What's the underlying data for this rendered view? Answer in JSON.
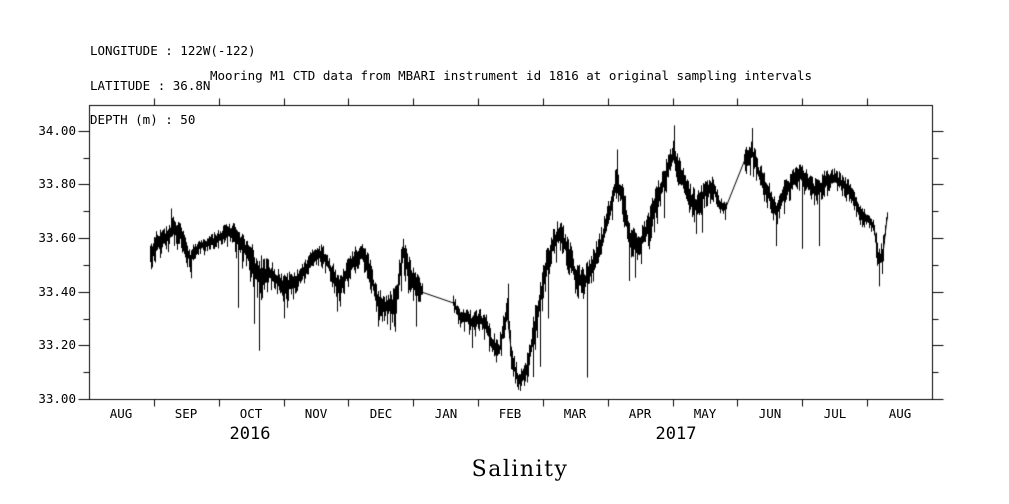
{
  "header": {
    "longitude": "LONGITUDE : 122W(-122)",
    "latitude": "LATITUDE : 36.8N",
    "depth": "DEPTH (m) : 50"
  },
  "title": "Mooring M1 CTD data from MBARI instrument id 1816 at original sampling intervals",
  "axis_title": "Salinity",
  "colors": {
    "ink": "#000000",
    "background": "#ffffff"
  },
  "chart_data": {
    "type": "line",
    "series_name": "salinity",
    "x_unit": "months since 2016-08-01",
    "xlim_months": [
      0,
      13
    ],
    "ylim": [
      33.0,
      34.096
    ],
    "grid": false,
    "legend": "none",
    "x_tick_labels": [
      "AUG",
      "SEP",
      "OCT",
      "NOV",
      "DEC",
      "JAN",
      "FEB",
      "MAR",
      "APR",
      "MAY",
      "JUN",
      "JUL",
      "AUG"
    ],
    "year_labels": [
      {
        "text": "2016",
        "t": 2.48
      },
      {
        "text": "2017",
        "t": 9.05
      }
    ],
    "y_major_ticks": [
      33.0,
      33.2,
      33.4,
      33.6,
      33.8,
      34.0
    ],
    "y_tick_labels": [
      "33.00",
      "33.20",
      "33.40",
      "33.60",
      "33.80",
      "34.00"
    ],
    "y_minor_ticks": [
      33.1,
      33.3,
      33.5,
      33.7,
      33.9
    ],
    "noise_seed": 20160801,
    "segments_note": "anchor points [t_months_since_2016_08_01, salinity_psu, noise_half_band]",
    "segments": [
      [
        [
          0.94,
          33.53,
          0.055
        ],
        [
          1.05,
          33.58,
          0.05
        ],
        [
          1.18,
          33.6,
          0.05
        ],
        [
          1.3,
          33.63,
          0.05
        ],
        [
          1.42,
          33.61,
          0.05
        ],
        [
          1.55,
          33.52,
          0.04
        ],
        [
          1.7,
          33.57,
          0.03
        ],
        [
          1.85,
          33.58,
          0.03
        ],
        [
          2.0,
          33.6,
          0.035
        ],
        [
          2.15,
          33.62,
          0.04
        ],
        [
          2.28,
          33.6,
          0.05
        ],
        [
          2.42,
          33.55,
          0.06
        ],
        [
          2.56,
          33.48,
          0.08
        ],
        [
          2.66,
          33.45,
          0.08
        ],
        [
          2.78,
          33.47,
          0.05
        ],
        [
          2.9,
          33.44,
          0.045
        ],
        [
          3.0,
          33.42,
          0.05
        ],
        [
          3.15,
          33.43,
          0.045
        ],
        [
          3.3,
          33.47,
          0.04
        ],
        [
          3.45,
          33.52,
          0.045
        ],
        [
          3.55,
          33.54,
          0.04
        ],
        [
          3.65,
          33.52,
          0.045
        ],
        [
          3.85,
          33.41,
          0.05
        ],
        [
          4.0,
          33.48,
          0.05
        ],
        [
          4.1,
          33.52,
          0.05
        ],
        [
          4.2,
          33.54,
          0.05
        ],
        [
          4.32,
          33.48,
          0.055
        ],
        [
          4.45,
          33.36,
          0.055
        ],
        [
          4.6,
          33.34,
          0.05
        ],
        [
          4.72,
          33.36,
          0.06
        ],
        [
          4.84,
          33.55,
          0.07
        ],
        [
          4.97,
          33.44,
          0.08
        ],
        [
          5.13,
          33.4,
          0.03
        ]
      ],
      [
        [
          5.61,
          33.36,
          0.03
        ],
        [
          5.72,
          33.3,
          0.03
        ],
        [
          5.82,
          33.31,
          0.035
        ],
        [
          5.92,
          33.28,
          0.04
        ],
        [
          6.02,
          33.3,
          0.045
        ],
        [
          6.12,
          33.27,
          0.045
        ],
        [
          6.22,
          33.2,
          0.05
        ],
        [
          6.32,
          33.18,
          0.05
        ],
        [
          6.44,
          33.33,
          0.06
        ],
        [
          6.52,
          33.14,
          0.05
        ],
        [
          6.62,
          33.07,
          0.04
        ],
        [
          6.72,
          33.09,
          0.045
        ],
        [
          6.82,
          33.2,
          0.07
        ],
        [
          6.92,
          33.33,
          0.08
        ],
        [
          7.02,
          33.46,
          0.07
        ],
        [
          7.12,
          33.56,
          0.06
        ],
        [
          7.25,
          33.62,
          0.055
        ],
        [
          7.38,
          33.55,
          0.06
        ],
        [
          7.5,
          33.46,
          0.06
        ],
        [
          7.62,
          33.43,
          0.055
        ],
        [
          7.75,
          33.49,
          0.06
        ],
        [
          7.88,
          33.56,
          0.065
        ],
        [
          8.0,
          33.68,
          0.07
        ],
        [
          8.12,
          33.8,
          0.06
        ],
        [
          8.22,
          33.76,
          0.06
        ],
        [
          8.33,
          33.6,
          0.07
        ],
        [
          8.45,
          33.56,
          0.055
        ],
        [
          8.6,
          33.63,
          0.06
        ],
        [
          8.75,
          33.73,
          0.07
        ],
        [
          8.88,
          33.83,
          0.06
        ],
        [
          9.0,
          33.91,
          0.055
        ],
        [
          9.1,
          33.85,
          0.055
        ],
        [
          9.22,
          33.76,
          0.06
        ],
        [
          9.35,
          33.72,
          0.055
        ],
        [
          9.5,
          33.77,
          0.045
        ],
        [
          9.62,
          33.79,
          0.045
        ],
        [
          9.72,
          33.72,
          0.04
        ],
        [
          9.82,
          33.72,
          0.025
        ]
      ],
      [
        [
          10.1,
          33.89,
          0.045
        ],
        [
          10.22,
          33.92,
          0.05
        ],
        [
          10.35,
          33.82,
          0.055
        ],
        [
          10.48,
          33.76,
          0.055
        ],
        [
          10.6,
          33.7,
          0.055
        ],
        [
          10.72,
          33.77,
          0.05
        ],
        [
          10.85,
          33.81,
          0.045
        ],
        [
          10.97,
          33.84,
          0.05
        ],
        [
          11.08,
          33.8,
          0.045
        ],
        [
          11.22,
          33.77,
          0.05
        ],
        [
          11.35,
          33.81,
          0.045
        ],
        [
          11.5,
          33.82,
          0.04
        ],
        [
          11.62,
          33.8,
          0.04
        ],
        [
          11.75,
          33.77,
          0.045
        ],
        [
          11.88,
          33.69,
          0.035
        ],
        [
          12.0,
          33.67,
          0.03
        ],
        [
          12.1,
          33.64,
          0.03
        ],
        [
          12.17,
          33.52,
          0.055
        ],
        [
          12.23,
          33.53,
          0.06
        ],
        [
          12.3,
          33.68,
          0.02
        ]
      ]
    ],
    "gaps_note": "thin straight lines across data gaps [t1, v1, t2, v2]",
    "gaps": [
      [
        5.13,
        33.4,
        5.61,
        33.36
      ],
      [
        9.82,
        33.72,
        10.1,
        33.89
      ]
    ],
    "spikes_note": "narrow excursions [t_months, extreme_value]",
    "spikes": [
      [
        1.27,
        33.71
      ],
      [
        1.58,
        33.45
      ],
      [
        2.3,
        33.34
      ],
      [
        2.55,
        33.28
      ],
      [
        2.62,
        33.18
      ],
      [
        3.05,
        33.34
      ],
      [
        4.45,
        33.27
      ],
      [
        4.7,
        33.27
      ],
      [
        5.05,
        33.27
      ],
      [
        5.9,
        33.19
      ],
      [
        6.46,
        33.43
      ],
      [
        6.65,
        33.03
      ],
      [
        6.95,
        33.12
      ],
      [
        7.08,
        33.3
      ],
      [
        7.68,
        33.08
      ],
      [
        8.14,
        33.93
      ],
      [
        8.33,
        33.44
      ],
      [
        9.02,
        34.02
      ],
      [
        9.45,
        33.62
      ],
      [
        10.22,
        34.01
      ],
      [
        10.6,
        33.57
      ],
      [
        11.0,
        33.56
      ],
      [
        11.26,
        33.57
      ],
      [
        12.19,
        33.42
      ]
    ]
  }
}
